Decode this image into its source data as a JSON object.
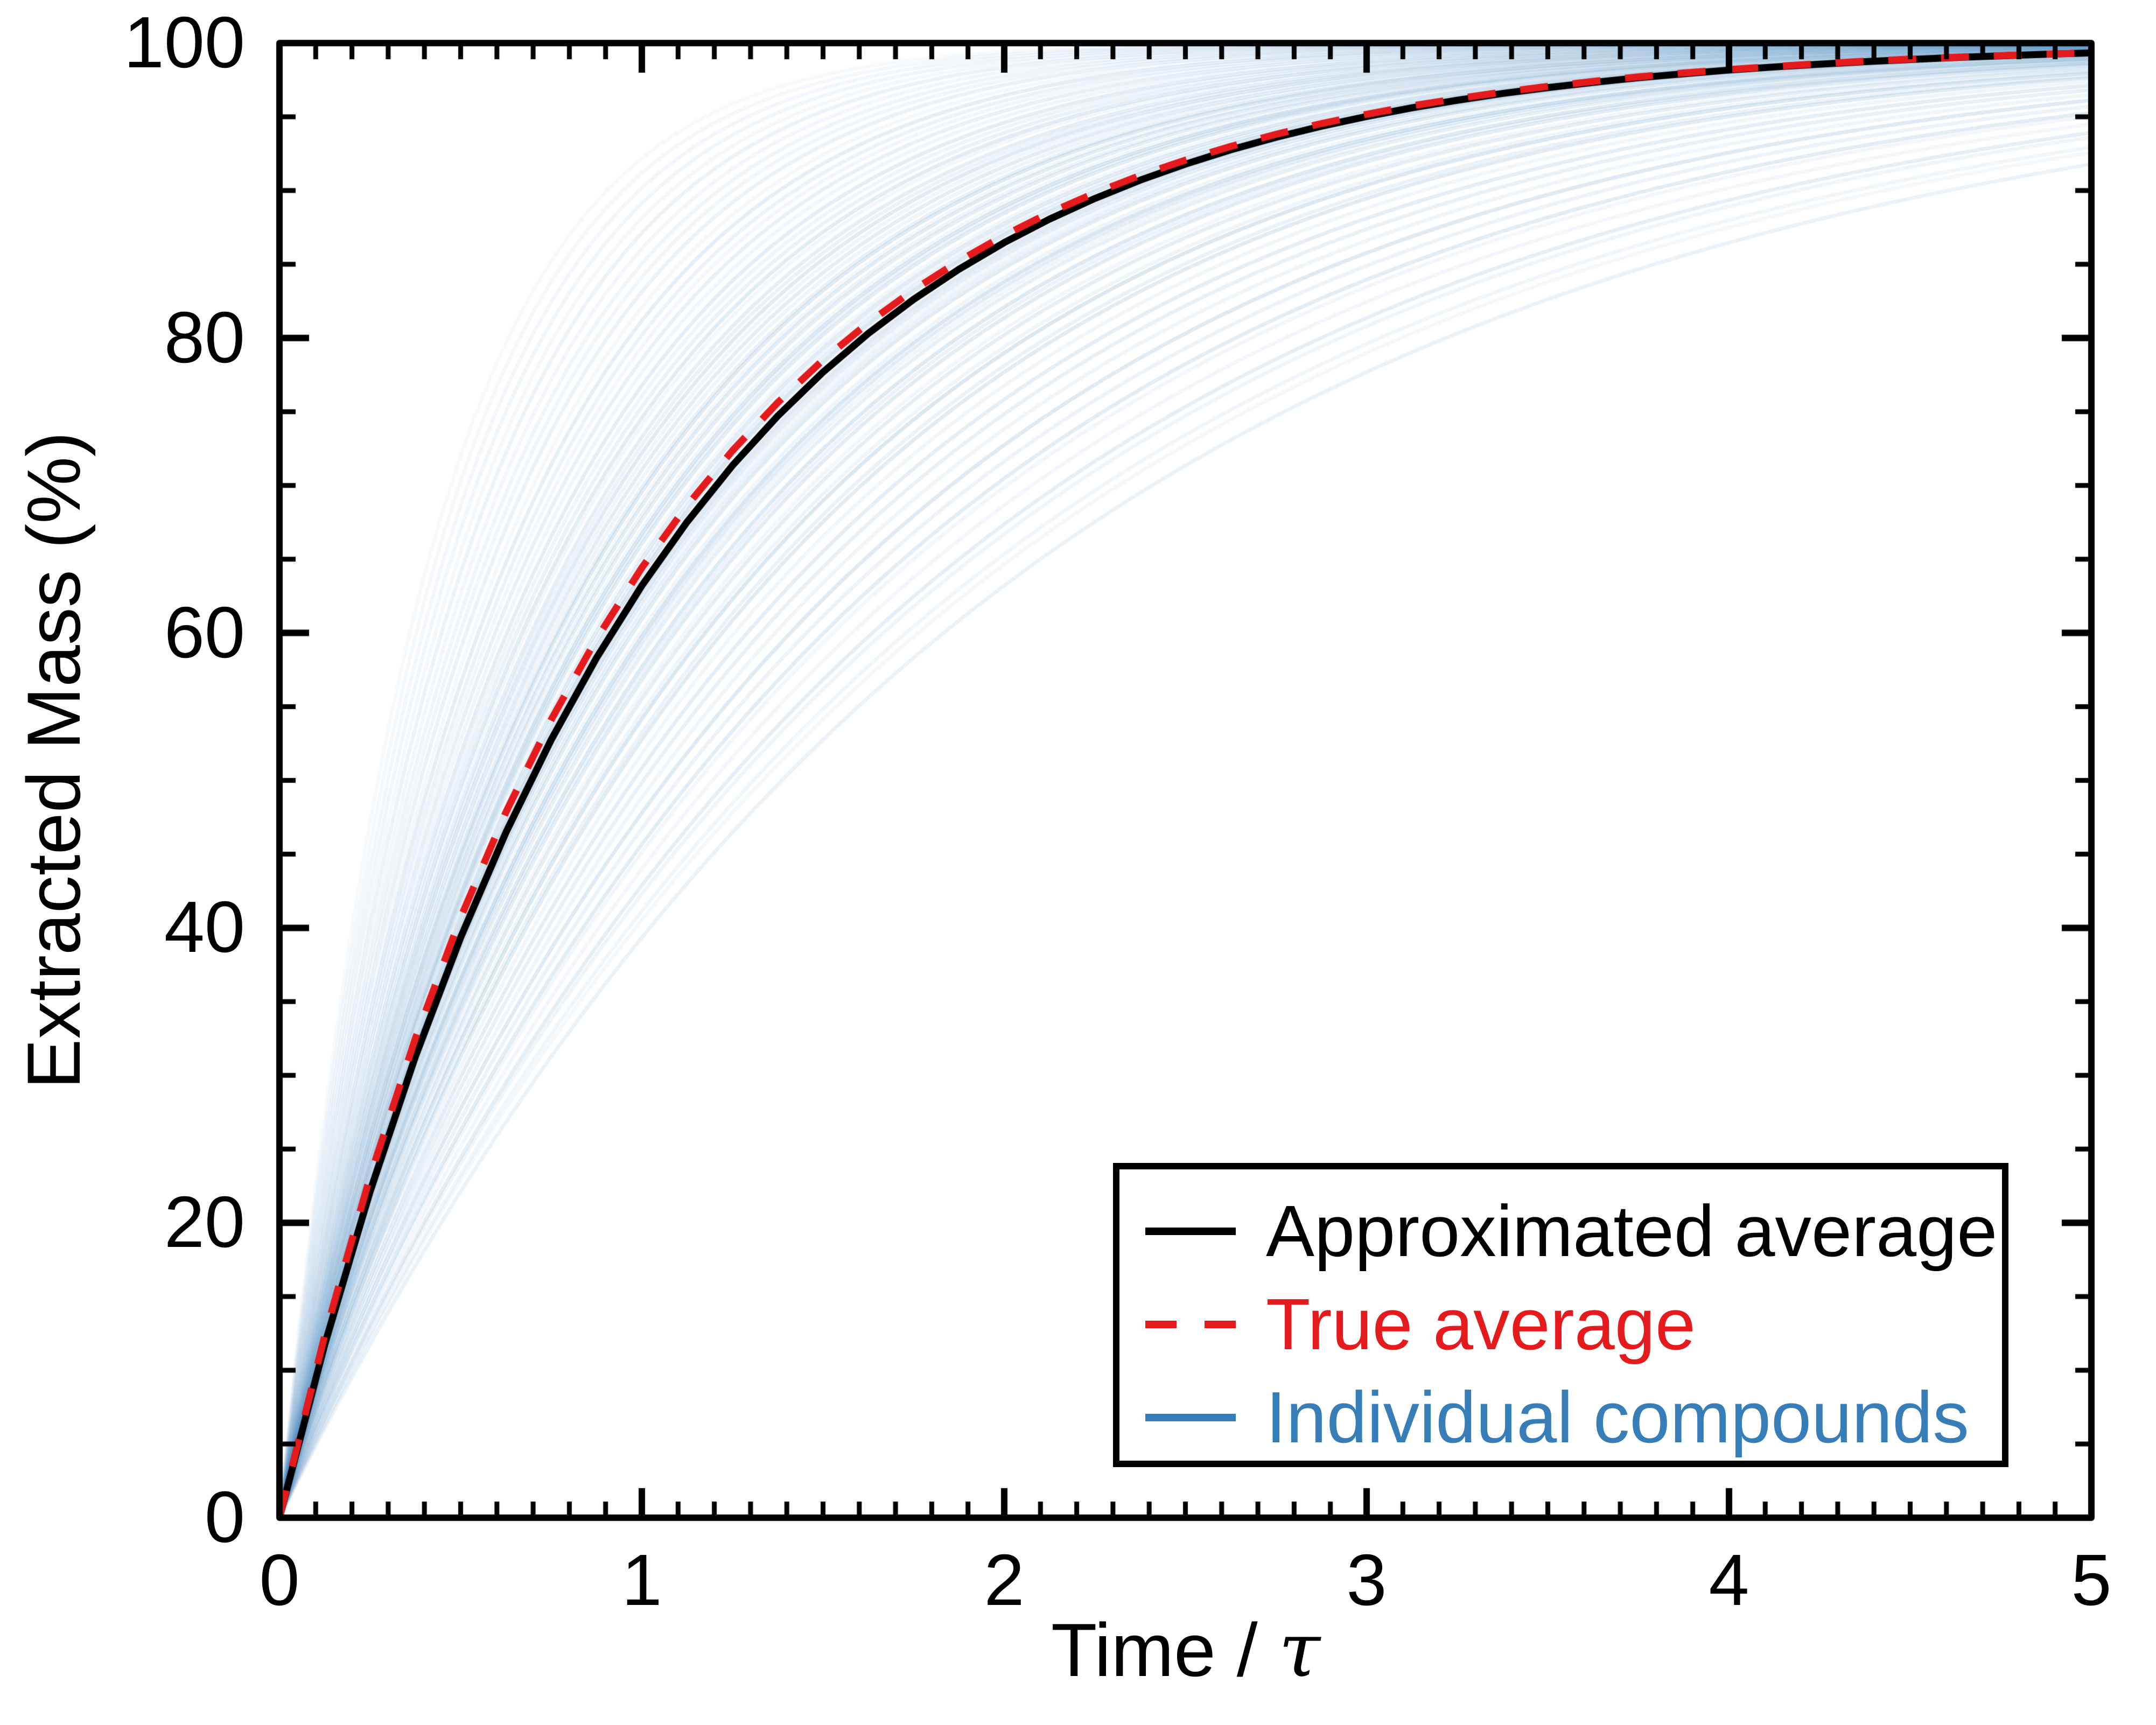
{
  "chart_data": {
    "type": "line",
    "title": "",
    "xlabel": "Time / τ",
    "xlabel_prefix": "Time / ",
    "xlabel_tau": "τ",
    "ylabel": "Extracted Mass (%)",
    "xlim": [
      0,
      5
    ],
    "ylim": [
      0,
      100
    ],
    "grid": false,
    "legend_position": "lower right",
    "x_major_ticks": [
      0,
      1,
      2,
      3,
      4,
      5
    ],
    "x_tick_labels": [
      "0",
      "1",
      "2",
      "3",
      "4",
      "5"
    ],
    "x_minor_step": 0.1,
    "y_major_ticks": [
      0,
      20,
      40,
      60,
      80,
      100
    ],
    "y_tick_labels": [
      "0",
      "20",
      "40",
      "60",
      "80",
      "100"
    ],
    "y_minor_step": 5,
    "axis_color": "#000000",
    "background_color": "#ffffff",
    "t": [
      0,
      0.125,
      0.25,
      0.375,
      0.5,
      0.625,
      0.75,
      0.875,
      1,
      1.125,
      1.25,
      1.375,
      1.5,
      1.625,
      1.75,
      1.875,
      2,
      2.125,
      2.25,
      2.375,
      2.5,
      2.625,
      2.75,
      2.875,
      3,
      3.125,
      3.25,
      3.375,
      3.5,
      3.625,
      3.75,
      3.875,
      4,
      4.125,
      4.25,
      4.375,
      4.5,
      4.625,
      4.75,
      4.875,
      5
    ],
    "series": [
      {
        "name": "Approximated average",
        "color": "#000000",
        "style": "solid",
        "linewidth": 13,
        "values": [
          0,
          11.75,
          22.12,
          31.27,
          39.35,
          46.47,
          52.76,
          58.31,
          63.21,
          67.53,
          71.35,
          74.71,
          77.69,
          80.31,
          82.62,
          84.66,
          86.47,
          88.06,
          89.46,
          90.7,
          91.79,
          92.76,
          93.61,
          94.36,
          95.02,
          95.61,
          96.12,
          96.58,
          96.98,
          97.33,
          97.65,
          97.92,
          98.17,
          98.38,
          98.57,
          98.74,
          98.89,
          99.02,
          99.13,
          99.24,
          99.33
        ]
      },
      {
        "name": "True average",
        "color": "#e41a1c",
        "style": "dashed",
        "linewidth": 13,
        "dash": [
          52,
          46
        ],
        "values": [
          0,
          12.36,
          23.13,
          32.5,
          40.7,
          47.85,
          54.12,
          59.6,
          64.42,
          68.65,
          72.36,
          75.62,
          78.51,
          81.03,
          83.26,
          85.22,
          86.96,
          88.49,
          89.83,
          91.02,
          92.06,
          92.99,
          93.81,
          94.54,
          95.17,
          95.74,
          96.23,
          96.67,
          97.06,
          97.4,
          97.71,
          97.97,
          98.21,
          98.41,
          98.6,
          98.77,
          98.91,
          99.04,
          99.15,
          99.25,
          99.34
        ]
      },
      {
        "name": "Individual compounds",
        "color": "#377eb8",
        "style": "ensemble",
        "linewidth": 7,
        "model": "y(t) = 100 * (1 - exp(-k*t))",
        "k": [
          0.5,
          0.53,
          0.56,
          0.58,
          0.61,
          0.63,
          0.65,
          0.67,
          0.69,
          0.71,
          0.73,
          0.75,
          0.76,
          0.78,
          0.79,
          0.81,
          0.82,
          0.84,
          0.85,
          0.86,
          0.88,
          0.89,
          0.9,
          0.91,
          0.92,
          0.94,
          0.95,
          0.96,
          0.97,
          0.98,
          0.99,
          1.0,
          1.01,
          1.02,
          1.03,
          1.04,
          1.05,
          1.06,
          1.08,
          1.09,
          1.1,
          1.11,
          1.13,
          1.14,
          1.16,
          1.17,
          1.19,
          1.2,
          1.22,
          1.24,
          1.26,
          1.28,
          1.3,
          1.32,
          1.35,
          1.37,
          1.4,
          1.43,
          1.46,
          1.5,
          1.54,
          1.58,
          1.62,
          1.67,
          1.72,
          1.78,
          1.84,
          1.9,
          1.97,
          2.05,
          2.13,
          2.22,
          2.32,
          2.43,
          2.55,
          0.55,
          0.6,
          0.52
        ],
        "alpha": [
          0.1,
          0.07,
          0.12,
          0.06,
          0.14,
          0.09,
          0.16,
          0.08,
          0.11,
          0.13,
          0.07,
          0.15,
          0.1,
          0.18,
          0.08,
          0.12,
          0.06,
          0.14,
          0.09,
          0.17,
          0.11,
          0.07,
          0.13,
          0.19,
          0.08,
          0.15,
          0.1,
          0.06,
          0.12,
          0.16,
          0.09,
          0.14,
          0.07,
          0.18,
          0.11,
          0.08,
          0.13,
          0.06,
          0.15,
          0.1,
          0.17,
          0.07,
          0.12,
          0.09,
          0.14,
          0.06,
          0.16,
          0.11,
          0.08,
          0.13,
          0.07,
          0.15,
          0.09,
          0.12,
          0.06,
          0.14,
          0.1,
          0.08,
          0.13,
          0.07,
          0.11,
          0.06,
          0.09,
          0.12,
          0.05,
          0.1,
          0.07,
          0.08,
          0.06,
          0.09,
          0.05,
          0.07,
          0.06,
          0.05,
          0.04,
          0.08,
          0.06,
          0.05
        ]
      }
    ]
  }
}
